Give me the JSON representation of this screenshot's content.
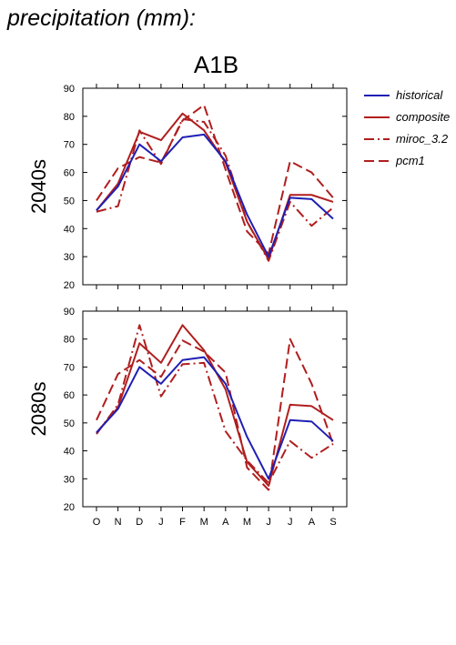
{
  "title": "precipitation (mm):",
  "scenario": "A1B",
  "colors": {
    "historical": "#1f1fb4",
    "model": "#b01e1e"
  },
  "legend": [
    {
      "name": "historical",
      "color": "#1f1fb4",
      "dash": "solid"
    },
    {
      "name": "composite",
      "color": "#b01e1e",
      "dash": "solid"
    },
    {
      "name": "miroc_3.2",
      "color": "#b01e1e",
      "dash": "dashdot"
    },
    {
      "name": "pcm1",
      "color": "#b01e1e",
      "dash": "dash"
    }
  ],
  "chart_data": [
    {
      "type": "line",
      "panel_label": "2040s",
      "categories": [
        "O",
        "N",
        "D",
        "J",
        "F",
        "M",
        "A",
        "M",
        "J",
        "J",
        "A",
        "S"
      ],
      "ylim": [
        20,
        90
      ],
      "yticks": [
        20,
        30,
        40,
        50,
        60,
        70,
        80,
        90
      ],
      "series": [
        {
          "name": "historical",
          "values": [
            46.5,
            55,
            70,
            64,
            72.5,
            73.5,
            64,
            45,
            30,
            51,
            50.5,
            43.5
          ]
        },
        {
          "name": "composite",
          "values": [
            46.5,
            56,
            74.5,
            71.5,
            81,
            75,
            63.5,
            42.5,
            29,
            52,
            52,
            49.5
          ]
        },
        {
          "name": "miroc_3.2",
          "values": [
            46,
            48,
            75,
            63,
            79,
            78,
            66,
            42.5,
            28.5,
            49.5,
            41,
            47.5
          ]
        },
        {
          "name": "pcm1",
          "values": [
            50,
            61.5,
            65.5,
            63.5,
            78.5,
            84,
            61,
            39,
            31,
            64,
            60,
            51
          ]
        }
      ]
    },
    {
      "type": "line",
      "panel_label": "2080s",
      "categories": [
        "O",
        "N",
        "D",
        "J",
        "F",
        "M",
        "A",
        "M",
        "J",
        "J",
        "A",
        "S"
      ],
      "ylim": [
        20,
        90
      ],
      "yticks": [
        20,
        30,
        40,
        50,
        60,
        70,
        80,
        90
      ],
      "series": [
        {
          "name": "historical",
          "values": [
            46.5,
            55,
            70,
            64,
            72.5,
            73.5,
            64,
            45,
            30,
            51,
            50.5,
            43.5
          ]
        },
        {
          "name": "composite",
          "values": [
            46.5,
            55.5,
            78.5,
            71.5,
            85,
            76,
            62,
            36,
            27.5,
            56.5,
            56,
            51
          ]
        },
        {
          "name": "miroc_3.2",
          "values": [
            46,
            56.5,
            85,
            59.5,
            71,
            71.5,
            47,
            36.5,
            28.5,
            43.5,
            37.5,
            42.5
          ]
        },
        {
          "name": "pcm1",
          "values": [
            51,
            67.5,
            72.5,
            66.5,
            79.5,
            75.5,
            68,
            34,
            26,
            80,
            64,
            42.5
          ]
        }
      ]
    }
  ]
}
